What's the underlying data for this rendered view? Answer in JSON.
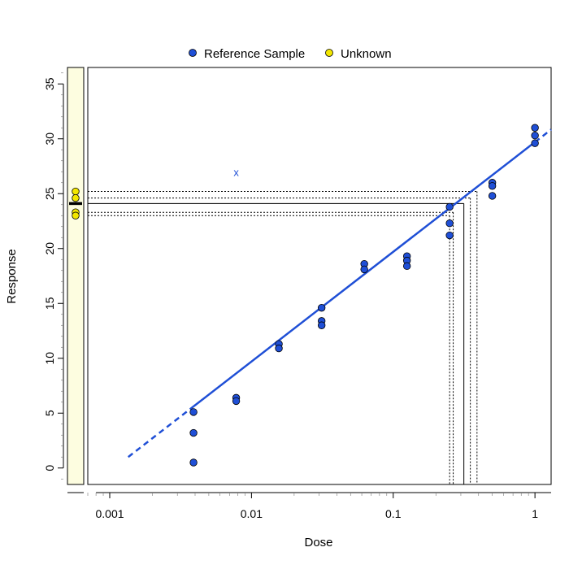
{
  "chart_data": {
    "type": "scatter",
    "xlabel": "Dose",
    "ylabel": "Response",
    "x_scale": "log",
    "xlim": [
      0.0007,
      1.3
    ],
    "ylim": [
      -1.5,
      36.5
    ],
    "x_ticks": [
      {
        "value": 0.001,
        "label": "0.001"
      },
      {
        "value": 0.01,
        "label": "0.01"
      },
      {
        "value": 0.1,
        "label": "0.1"
      },
      {
        "value": 1,
        "label": "1"
      }
    ],
    "y_ticks": [
      {
        "value": 0,
        "label": "0"
      },
      {
        "value": 5,
        "label": "5"
      },
      {
        "value": 10,
        "label": "10"
      },
      {
        "value": 15,
        "label": "15"
      },
      {
        "value": 20,
        "label": "20"
      },
      {
        "value": 25,
        "label": "25"
      },
      {
        "value": 30,
        "label": "30"
      },
      {
        "value": 35,
        "label": "35"
      }
    ],
    "legend": {
      "placement": "top-center",
      "entries": [
        {
          "label": "Reference Sample",
          "color": "#1f4fd6"
        },
        {
          "label": "Unknown",
          "color": "#f2e600"
        }
      ]
    },
    "reference_points": [
      {
        "x": 0.0039,
        "y": 5.1
      },
      {
        "x": 0.0039,
        "y": 3.2
      },
      {
        "x": 0.0039,
        "y": 0.5
      },
      {
        "x": 0.0078,
        "y": 6.4
      },
      {
        "x": 0.0078,
        "y": 6.1
      },
      {
        "x": 0.0156,
        "y": 11.3
      },
      {
        "x": 0.0156,
        "y": 10.9
      },
      {
        "x": 0.03125,
        "y": 14.6
      },
      {
        "x": 0.03125,
        "y": 13.4
      },
      {
        "x": 0.03125,
        "y": 13.0
      },
      {
        "x": 0.0625,
        "y": 18.6
      },
      {
        "x": 0.0625,
        "y": 18.1
      },
      {
        "x": 0.125,
        "y": 19.3
      },
      {
        "x": 0.125,
        "y": 18.9
      },
      {
        "x": 0.125,
        "y": 18.4
      },
      {
        "x": 0.25,
        "y": 23.8
      },
      {
        "x": 0.25,
        "y": 22.3
      },
      {
        "x": 0.25,
        "y": 21.2
      },
      {
        "x": 0.5,
        "y": 26.0
      },
      {
        "x": 0.5,
        "y": 25.7
      },
      {
        "x": 0.5,
        "y": 24.8
      },
      {
        "x": 1.0,
        "y": 31.0
      },
      {
        "x": 1.0,
        "y": 30.3
      },
      {
        "x": 1.0,
        "y": 29.6
      }
    ],
    "outlier": {
      "x": 0.0078,
      "y": 27.0,
      "label": "x"
    },
    "unknown_responses": [
      25.2,
      24.6,
      23.3,
      23.0
    ],
    "unknown_mean": 24.1,
    "fit_line": {
      "solid_from_x": 0.0039,
      "solid_to_x": 1.0,
      "dashed_ranges": [
        [
          0.00135,
          0.0039
        ],
        [
          1.0,
          1.3
        ]
      ],
      "y_at_x1": 29.7,
      "slope_per_decade": 10.0,
      "color": "#1f4fd6"
    },
    "estimate_lines": {
      "solid": {
        "y": 24.1,
        "x": 0.315
      },
      "dotted": [
        {
          "y": 25.2,
          "x": 0.39
        },
        {
          "y": 24.6,
          "x": 0.35
        },
        {
          "y": 23.3,
          "x": 0.265
        },
        {
          "y": 23.0,
          "x": 0.25
        }
      ]
    },
    "colors": {
      "reference": "#1f4fd6",
      "unknown": "#f2e600",
      "strip_background": "#fdfde0"
    }
  }
}
